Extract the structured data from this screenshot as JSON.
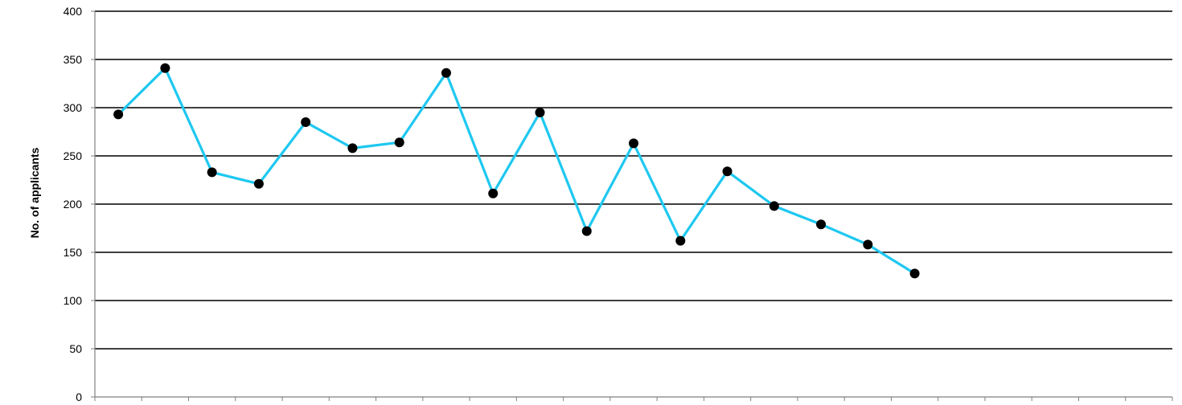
{
  "chart_data": {
    "type": "line",
    "title": "",
    "xlabel": "",
    "ylabel": "No. of applicants",
    "ylim": [
      0,
      400
    ],
    "yticks": [
      0,
      50,
      100,
      150,
      200,
      250,
      300,
      350,
      400
    ],
    "x_slots": 23,
    "grid": "horizontal",
    "legend": "none",
    "series": [
      {
        "values": [
          293,
          341,
          233,
          221,
          285,
          258,
          264,
          336,
          211,
          295,
          172,
          263,
          162,
          234,
          198,
          179,
          158,
          128
        ],
        "line_color": "#1ec8f0",
        "marker_color": "#000000"
      }
    ],
    "gridline_color": "#000000",
    "axis_color": "#808080"
  }
}
